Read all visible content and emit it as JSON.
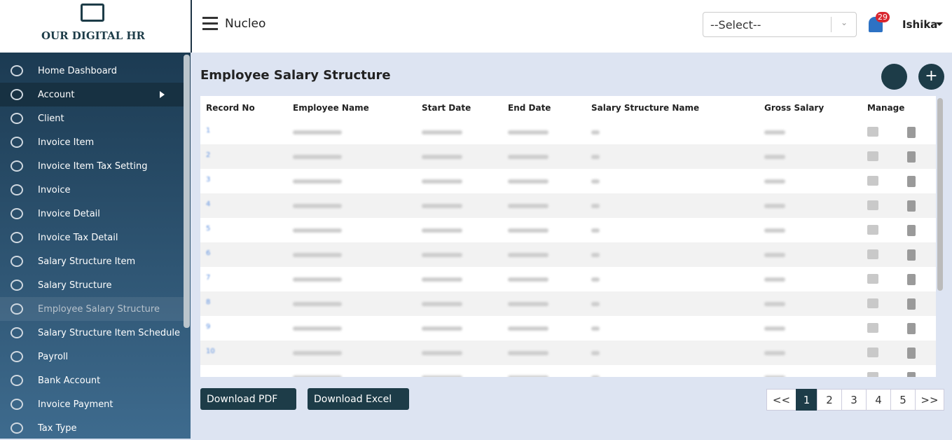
{
  "brand": {
    "logo_text": "OUR DIGITAL HR"
  },
  "header": {
    "title": "Nucleo",
    "select": "--Select--",
    "notifications": 29,
    "user": "Ishika"
  },
  "sidebar": {
    "items": [
      "Home Dashboard",
      "Account",
      "Client",
      "Invoice Item",
      "Invoice Item Tax Setting",
      "Invoice",
      "Invoice Detail",
      "Invoice Tax Detail",
      "Salary Structure Item",
      "Salary Structure",
      "Employee Salary Structure",
      "Salary Structure Item Schedule",
      "Payroll",
      "Bank Account",
      "Invoice Payment",
      "Tax Type"
    ]
  },
  "page": {
    "title": "Employee Salary Structure"
  },
  "table": {
    "columns": [
      "Record No",
      "Employee Name",
      "Start Date",
      "End Date",
      "Salary Structure Name",
      "Gross Salary",
      "Manage"
    ],
    "record_numbers": [
      1,
      2,
      3,
      4,
      5,
      6,
      7,
      8,
      9,
      10
    ]
  },
  "buttons": {
    "pdf": "Download PDF",
    "excel": "Download Excel"
  },
  "pagination": {
    "prev": "<<",
    "pages": [
      1,
      2,
      3,
      4,
      5
    ],
    "next": ">>"
  }
}
